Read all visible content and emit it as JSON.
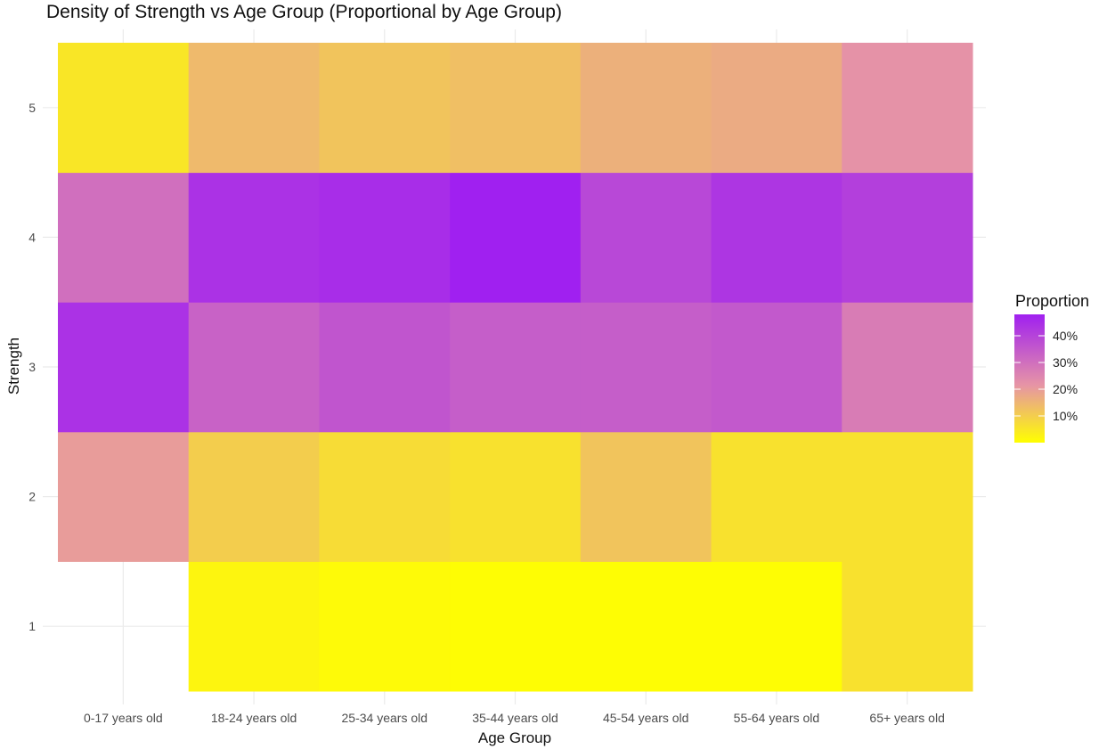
{
  "chart_data": {
    "type": "heatmap",
    "title": "Density of Strength vs Age Group (Proportional by Age Group)",
    "xlabel": "Age Group",
    "ylabel": "Strength",
    "x_categories": [
      "0-17 years old",
      "18-24 years old",
      "25-34 years old",
      "35-44 years old",
      "45-54 years old",
      "55-64 years old",
      "65+ years old"
    ],
    "y_categories": [
      "1",
      "2",
      "3",
      "4",
      "5"
    ],
    "values": {
      "1": [
        null,
        0.02,
        0.01,
        0.005,
        0.005,
        0.005,
        0.06
      ],
      "2": [
        0.2,
        0.1,
        0.07,
        0.06,
        0.12,
        0.06,
        0.06
      ],
      "3": [
        0.44,
        0.33,
        0.36,
        0.34,
        0.34,
        0.35,
        0.27
      ],
      "4": [
        0.3,
        0.44,
        0.45,
        0.48,
        0.39,
        0.43,
        0.41
      ],
      "5": [
        0.05,
        0.14,
        0.12,
        0.13,
        0.16,
        0.17,
        0.22
      ]
    },
    "legend": {
      "title": "Proportion",
      "position": "right",
      "ticks": [
        {
          "value": 0.1,
          "label": "10%"
        },
        {
          "value": 0.2,
          "label": "20%"
        },
        {
          "value": 0.3,
          "label": "30%"
        },
        {
          "value": 0.4,
          "label": "40%"
        }
      ],
      "range": [
        0.0,
        0.48
      ]
    },
    "color_scale": {
      "low": "#ffff00",
      "mid": "#e694a6",
      "high": "#a020f0"
    },
    "grid": true
  }
}
